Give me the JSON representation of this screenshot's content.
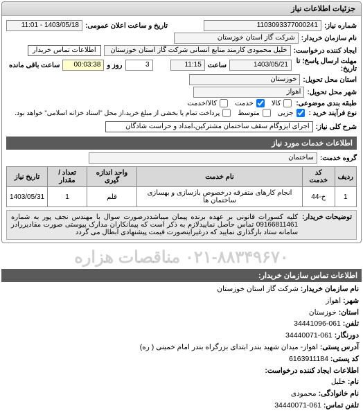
{
  "panel1_title": "جزئیات اطلاعات نیاز",
  "row1": {
    "label_num": "شماره نیاز:",
    "num": "1103093377000241",
    "label_date": "تاریخ و ساعت اعلان عمومی:",
    "date": "1403/05/18 - 11:01"
  },
  "row2": {
    "label": "نام سازمان خریدار:",
    "value": "شرکت گاز استان خوزستان"
  },
  "row3": {
    "label": "ایجاد کننده درخواست:",
    "value": "خلیل محمودی کارمند منابع انسانی شرکت گاز استان خوزستان",
    "btn": "اطلاعات تماس خریدار"
  },
  "row4": {
    "label1": "مهلت ارسال پاسخ؛ تا تاریخ:",
    "date": "1403/05/21",
    "label2": "ساعت",
    "time": "11:15",
    "label3": "روز و",
    "days": "3",
    "label4": "ساعت باقی مانده",
    "remain": "00:03:38"
  },
  "row5": {
    "label": "استان محل تحویل:",
    "value": "خوزستان"
  },
  "row6": {
    "label": "شهر محل تحویل:",
    "value": "اهواز"
  },
  "row7": {
    "label": "طبقه بندی موضوعی:",
    "cb1": "کالا",
    "cb2": "خدمت",
    "cb3": "کالا/خدمت"
  },
  "row8": {
    "label": "نوع فرآیند خرید :",
    "cb1": "جزیی",
    "cb2": "متوسط",
    "note": "پرداخت تمام یا بخشی از مبلغ خرید،از محل \"اسناد خزانه اسلامی\" خواهد بود."
  },
  "row9": {
    "label": "شرح کلی نیاز:",
    "value": "اجرای ایزوگام سقف ساختمان مشترکین،امداد و حراست شادگان"
  },
  "panel2_title": "اطلاعات خدمات مورد نیاز",
  "row10": {
    "label": "گروه خدمت:",
    "value": "ساختمان"
  },
  "table": {
    "headers": [
      "ردیف",
      "کد خدمت",
      "نام خدمت",
      "واحد اندازه گیری",
      "تعداد / مقدار",
      "تاریخ نیاز"
    ],
    "rows": [
      [
        "1",
        "خ-44",
        "انجام کارهای متفرقه درخصوص بازسازی و بهسازی ساختمان ها",
        "قلم",
        "1",
        "1403/05/31"
      ]
    ]
  },
  "desc": {
    "label": "توضیحات خریدار:",
    "text": "کلیه کسورات قانونی بر عهده برنده پیمان میباشددرصورت سوال با مهندس نجف پور به شماره 09166811461 تماس حاصل نماییدلازم به ذکر است که پیمانکاران مدارک پیوستی صورت مقادیررادر سامانه ستاد بارگذاری نمایید که درغیراینصورت قیمت پیشنهادی ابطال می گردد"
  },
  "watermark_text": "۰۲۱-۸۸۳۴۹۶۷۰ مناقصات هزاره",
  "panel3_title": "اطلاعات تماس سازمان خریدار:",
  "contact": {
    "l1": "نام سازمان خریدار:",
    "v1": "شرکت گاز استان خوزستان",
    "l2": "شهر:",
    "v2": "اهواز",
    "l3": "استان:",
    "v3": "خوزستان",
    "l4": "تلفن:",
    "v4": "061-34441096",
    "l5": "دورنگار:",
    "v5": "061-34440071",
    "l6": "آدرس پستی:",
    "v6": "اهواز- میدان شهید بندر ابتدای بزرگراه بندر امام خمینی ( ره)",
    "l7": "کد پستی:",
    "v7": "6163911184",
    "hdr2": "اطلاعات ایجاد کننده درخواست:",
    "l8": "نام:",
    "v8": "خلیل",
    "l9": "نام خانوادگی:",
    "v9": "محمودی",
    "l10": "تلفن تماس:",
    "v10": "061-34440071"
  }
}
